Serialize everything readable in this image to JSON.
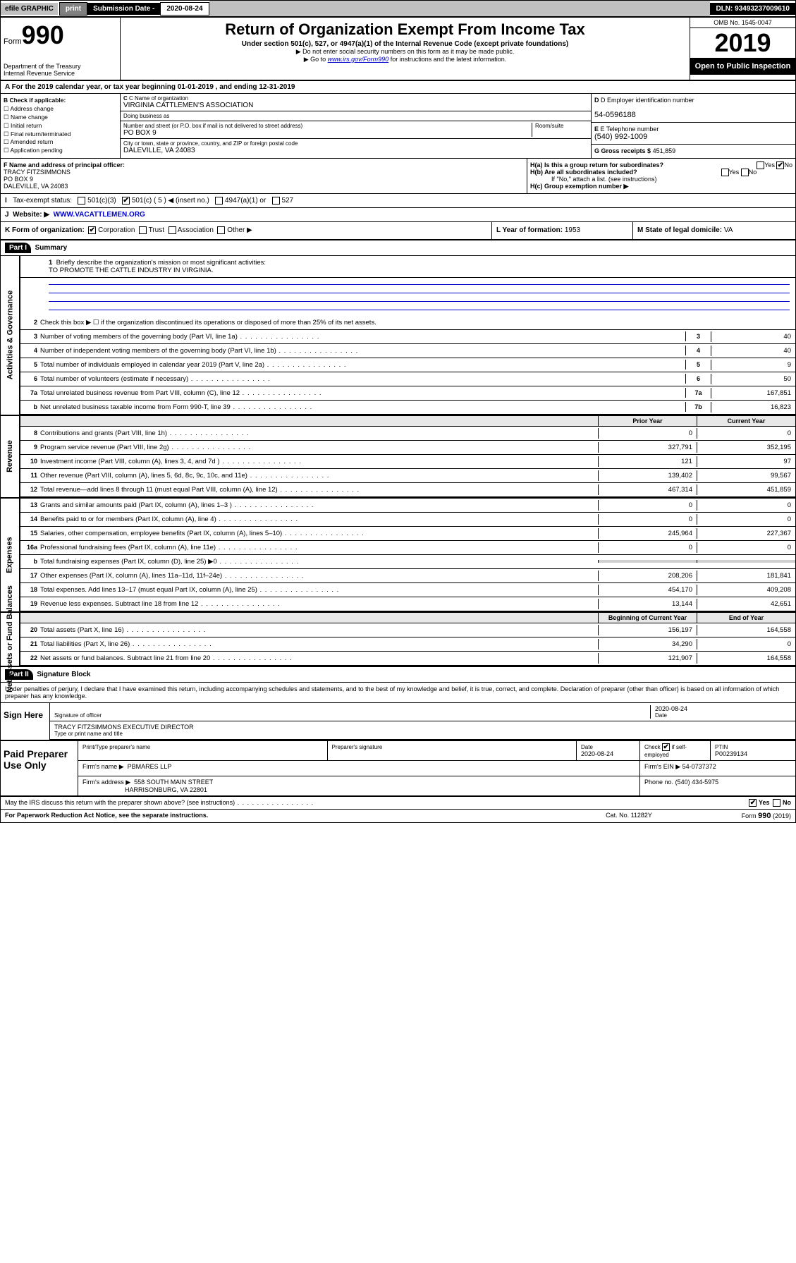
{
  "topbar": {
    "efile": "efile GRAPHIC",
    "print": "print",
    "subdate_lbl": "Submission Date - ",
    "subdate": "2020-08-24",
    "dln": "DLN: 93493237009610"
  },
  "header": {
    "form_word": "Form",
    "form_num": "990",
    "dept1": "Department of the Treasury",
    "dept2": "Internal Revenue Service",
    "title": "Return of Organization Exempt From Income Tax",
    "sub1": "Under section 501(c), 527, or 4947(a)(1) of the Internal Revenue Code (except private foundations)",
    "sub2": "▶ Do not enter social security numbers on this form as it may be made public.",
    "sub3_pre": "▶ Go to ",
    "sub3_link": "www.irs.gov/Form990",
    "sub3_post": " for instructions and the latest information.",
    "omb": "OMB No. 1545-0047",
    "year": "2019",
    "open": "Open to Public Inspection"
  },
  "period": {
    "text": "A For the 2019 calendar year, or tax year beginning 01-01-2019   , and ending 12-31-2019"
  },
  "boxB": {
    "hdr": "B Check if applicable:",
    "items": [
      "☐ Address change",
      "☐ Name change",
      "☐ Initial return",
      "☐ Final return/terminated",
      "☐ Amended return",
      "☐ Application pending"
    ]
  },
  "boxC": {
    "name_lbl": "C Name of organization",
    "name": "VIRGINIA CATTLEMEN'S ASSOCIATION",
    "dba_lbl": "Doing business as",
    "dba": "",
    "addr_lbl": "Number and street (or P.O. box if mail is not delivered to street address)",
    "room_lbl": "Room/suite",
    "addr": "PO BOX 9",
    "city_lbl": "City or town, state or province, country, and ZIP or foreign postal code",
    "city": "DALEVILLE, VA  24083"
  },
  "boxD": {
    "lbl": "D Employer identification number",
    "val": "54-0596188"
  },
  "boxE": {
    "lbl": "E Telephone number",
    "val": "(540) 992-1009"
  },
  "boxG": {
    "lbl": "G Gross receipts $",
    "val": "451,859"
  },
  "boxF": {
    "lbl": "F  Name and address of principal officer:",
    "name": "TRACY FITZSIMMONS",
    "addr1": "PO BOX 9",
    "addr2": "DALEVILLE, VA  24083"
  },
  "boxH": {
    "a": "H(a)  Is this a group return for subordinates?",
    "a_yes": "Yes",
    "a_no": "No",
    "b": "H(b)  Are all subordinates included?",
    "b_yes": "Yes",
    "b_no": "No",
    "b_note": "If \"No,\" attach a list. (see instructions)",
    "c": "H(c)  Group exemption number ▶"
  },
  "rowI": {
    "lbl": "Tax-exempt status:",
    "o1": "501(c)(3)",
    "o2": "501(c) ( 5 ) ◀ (insert no.)",
    "o3": "4947(a)(1) or",
    "o4": "527"
  },
  "rowJ": {
    "lbl": "Website: ▶",
    "val": "WWW.VACATTLEMEN.ORG"
  },
  "rowK": {
    "lbl": "K Form of organization:",
    "o1": "Corporation",
    "o2": "Trust",
    "o3": "Association",
    "o4": "Other ▶"
  },
  "rowL": {
    "lbl": "L Year of formation:",
    "val": "1953"
  },
  "rowM": {
    "lbl": "M State of legal domicile:",
    "val": "VA"
  },
  "partI": {
    "hdr": "Part I",
    "title": "Summary"
  },
  "sideTabs": {
    "ag": "Activities & Governance",
    "rev": "Revenue",
    "exp": "Expenses",
    "na": "Net Assets or Fund Balances"
  },
  "line1": {
    "q": "Briefly describe the organization's mission or most significant activities:",
    "a": "TO PROMOTE THE CATTLE INDUSTRY IN VIRGINIA."
  },
  "line2": "Check this box ▶ ☐  if the organization discontinued its operations or disposed of more than 25% of its net assets.",
  "lines_ag": [
    {
      "n": "3",
      "d": "Number of voting members of the governing body (Part VI, line 1a)",
      "bn": "3",
      "v": "40"
    },
    {
      "n": "4",
      "d": "Number of independent voting members of the governing body (Part VI, line 1b)",
      "bn": "4",
      "v": "40"
    },
    {
      "n": "5",
      "d": "Total number of individuals employed in calendar year 2019 (Part V, line 2a)",
      "bn": "5",
      "v": "9"
    },
    {
      "n": "6",
      "d": "Total number of volunteers (estimate if necessary)",
      "bn": "6",
      "v": "50"
    },
    {
      "n": "7a",
      "d": "Total unrelated business revenue from Part VIII, column (C), line 12",
      "bn": "7a",
      "v": "167,851"
    },
    {
      "n": "b",
      "d": "Net unrelated business taxable income from Form 990-T, line 39",
      "bn": "7b",
      "v": "16,823"
    }
  ],
  "hdr_py": "Prior Year",
  "hdr_cy": "Current Year",
  "lines_rev": [
    {
      "n": "8",
      "d": "Contributions and grants (Part VIII, line 1h)",
      "py": "0",
      "cy": "0"
    },
    {
      "n": "9",
      "d": "Program service revenue (Part VIII, line 2g)",
      "py": "327,791",
      "cy": "352,195"
    },
    {
      "n": "10",
      "d": "Investment income (Part VIII, column (A), lines 3, 4, and 7d )",
      "py": "121",
      "cy": "97"
    },
    {
      "n": "11",
      "d": "Other revenue (Part VIII, column (A), lines 5, 6d, 8c, 9c, 10c, and 11e)",
      "py": "139,402",
      "cy": "99,567"
    },
    {
      "n": "12",
      "d": "Total revenue—add lines 8 through 11 (must equal Part VIII, column (A), line 12)",
      "py": "467,314",
      "cy": "451,859"
    }
  ],
  "lines_exp": [
    {
      "n": "13",
      "d": "Grants and similar amounts paid (Part IX, column (A), lines 1–3 )",
      "py": "0",
      "cy": "0"
    },
    {
      "n": "14",
      "d": "Benefits paid to or for members (Part IX, column (A), line 4)",
      "py": "0",
      "cy": "0"
    },
    {
      "n": "15",
      "d": "Salaries, other compensation, employee benefits (Part IX, column (A), lines 5–10)",
      "py": "245,964",
      "cy": "227,367"
    },
    {
      "n": "16a",
      "d": "Professional fundraising fees (Part IX, column (A), line 11e)",
      "py": "0",
      "cy": "0"
    },
    {
      "n": "b",
      "d": "Total fundraising expenses (Part IX, column (D), line 25) ▶0",
      "py": "",
      "cy": "",
      "shade": true
    },
    {
      "n": "17",
      "d": "Other expenses (Part IX, column (A), lines 11a–11d, 11f–24e)",
      "py": "208,206",
      "cy": "181,841"
    },
    {
      "n": "18",
      "d": "Total expenses. Add lines 13–17 (must equal Part IX, column (A), line 25)",
      "py": "454,170",
      "cy": "409,208"
    },
    {
      "n": "19",
      "d": "Revenue less expenses. Subtract line 18 from line 12",
      "py": "13,144",
      "cy": "42,651"
    }
  ],
  "hdr_by": "Beginning of Current Year",
  "hdr_ey": "End of Year",
  "lines_na": [
    {
      "n": "20",
      "d": "Total assets (Part X, line 16)",
      "py": "156,197",
      "cy": "164,558"
    },
    {
      "n": "21",
      "d": "Total liabilities (Part X, line 26)",
      "py": "34,290",
      "cy": "0"
    },
    {
      "n": "22",
      "d": "Net assets or fund balances. Subtract line 21 from line 20",
      "py": "121,907",
      "cy": "164,558"
    }
  ],
  "partII": {
    "hdr": "Part II",
    "title": "Signature Block"
  },
  "sig": {
    "decl": "Under penalties of perjury, I declare that I have examined this return, including accompanying schedules and statements, and to the best of my knowledge and belief, it is true, correct, and complete. Declaration of preparer (other than officer) is based on all information of which preparer has any knowledge.",
    "here": "Sign Here",
    "sig_lbl": "Signature of officer",
    "date": "2020-08-24",
    "date_lbl": "Date",
    "name": "TRACY FITZSIMMONS  EXECUTIVE DIRECTOR",
    "name_lbl": "Type or print name and title"
  },
  "prep": {
    "hdr": "Paid Preparer Use Only",
    "c1": "Print/Type preparer's name",
    "c2": "Preparer's signature",
    "c3_lbl": "Date",
    "c3": "2020-08-24",
    "c4_lbl": "Check",
    "c4_lbl2": "if self-employed",
    "c5_lbl": "PTIN",
    "c5": "P00239134",
    "firm_lbl": "Firm's name    ▶",
    "firm": "PBMARES LLP",
    "ein_lbl": "Firm's EIN ▶",
    "ein": "54-0737372",
    "addr_lbl": "Firm's address ▶",
    "addr1": "558 SOUTH MAIN STREET",
    "addr2": "HARRISONBURG, VA  22801",
    "phone_lbl": "Phone no.",
    "phone": "(540) 434-5975"
  },
  "footer": {
    "discuss": "May the IRS discuss this return with the preparer shown above? (see instructions)",
    "yes": "Yes",
    "no": "No",
    "pra": "For Paperwork Reduction Act Notice, see the separate instructions.",
    "cat": "Cat. No. 11282Y",
    "form": "Form 990 (2019)"
  }
}
